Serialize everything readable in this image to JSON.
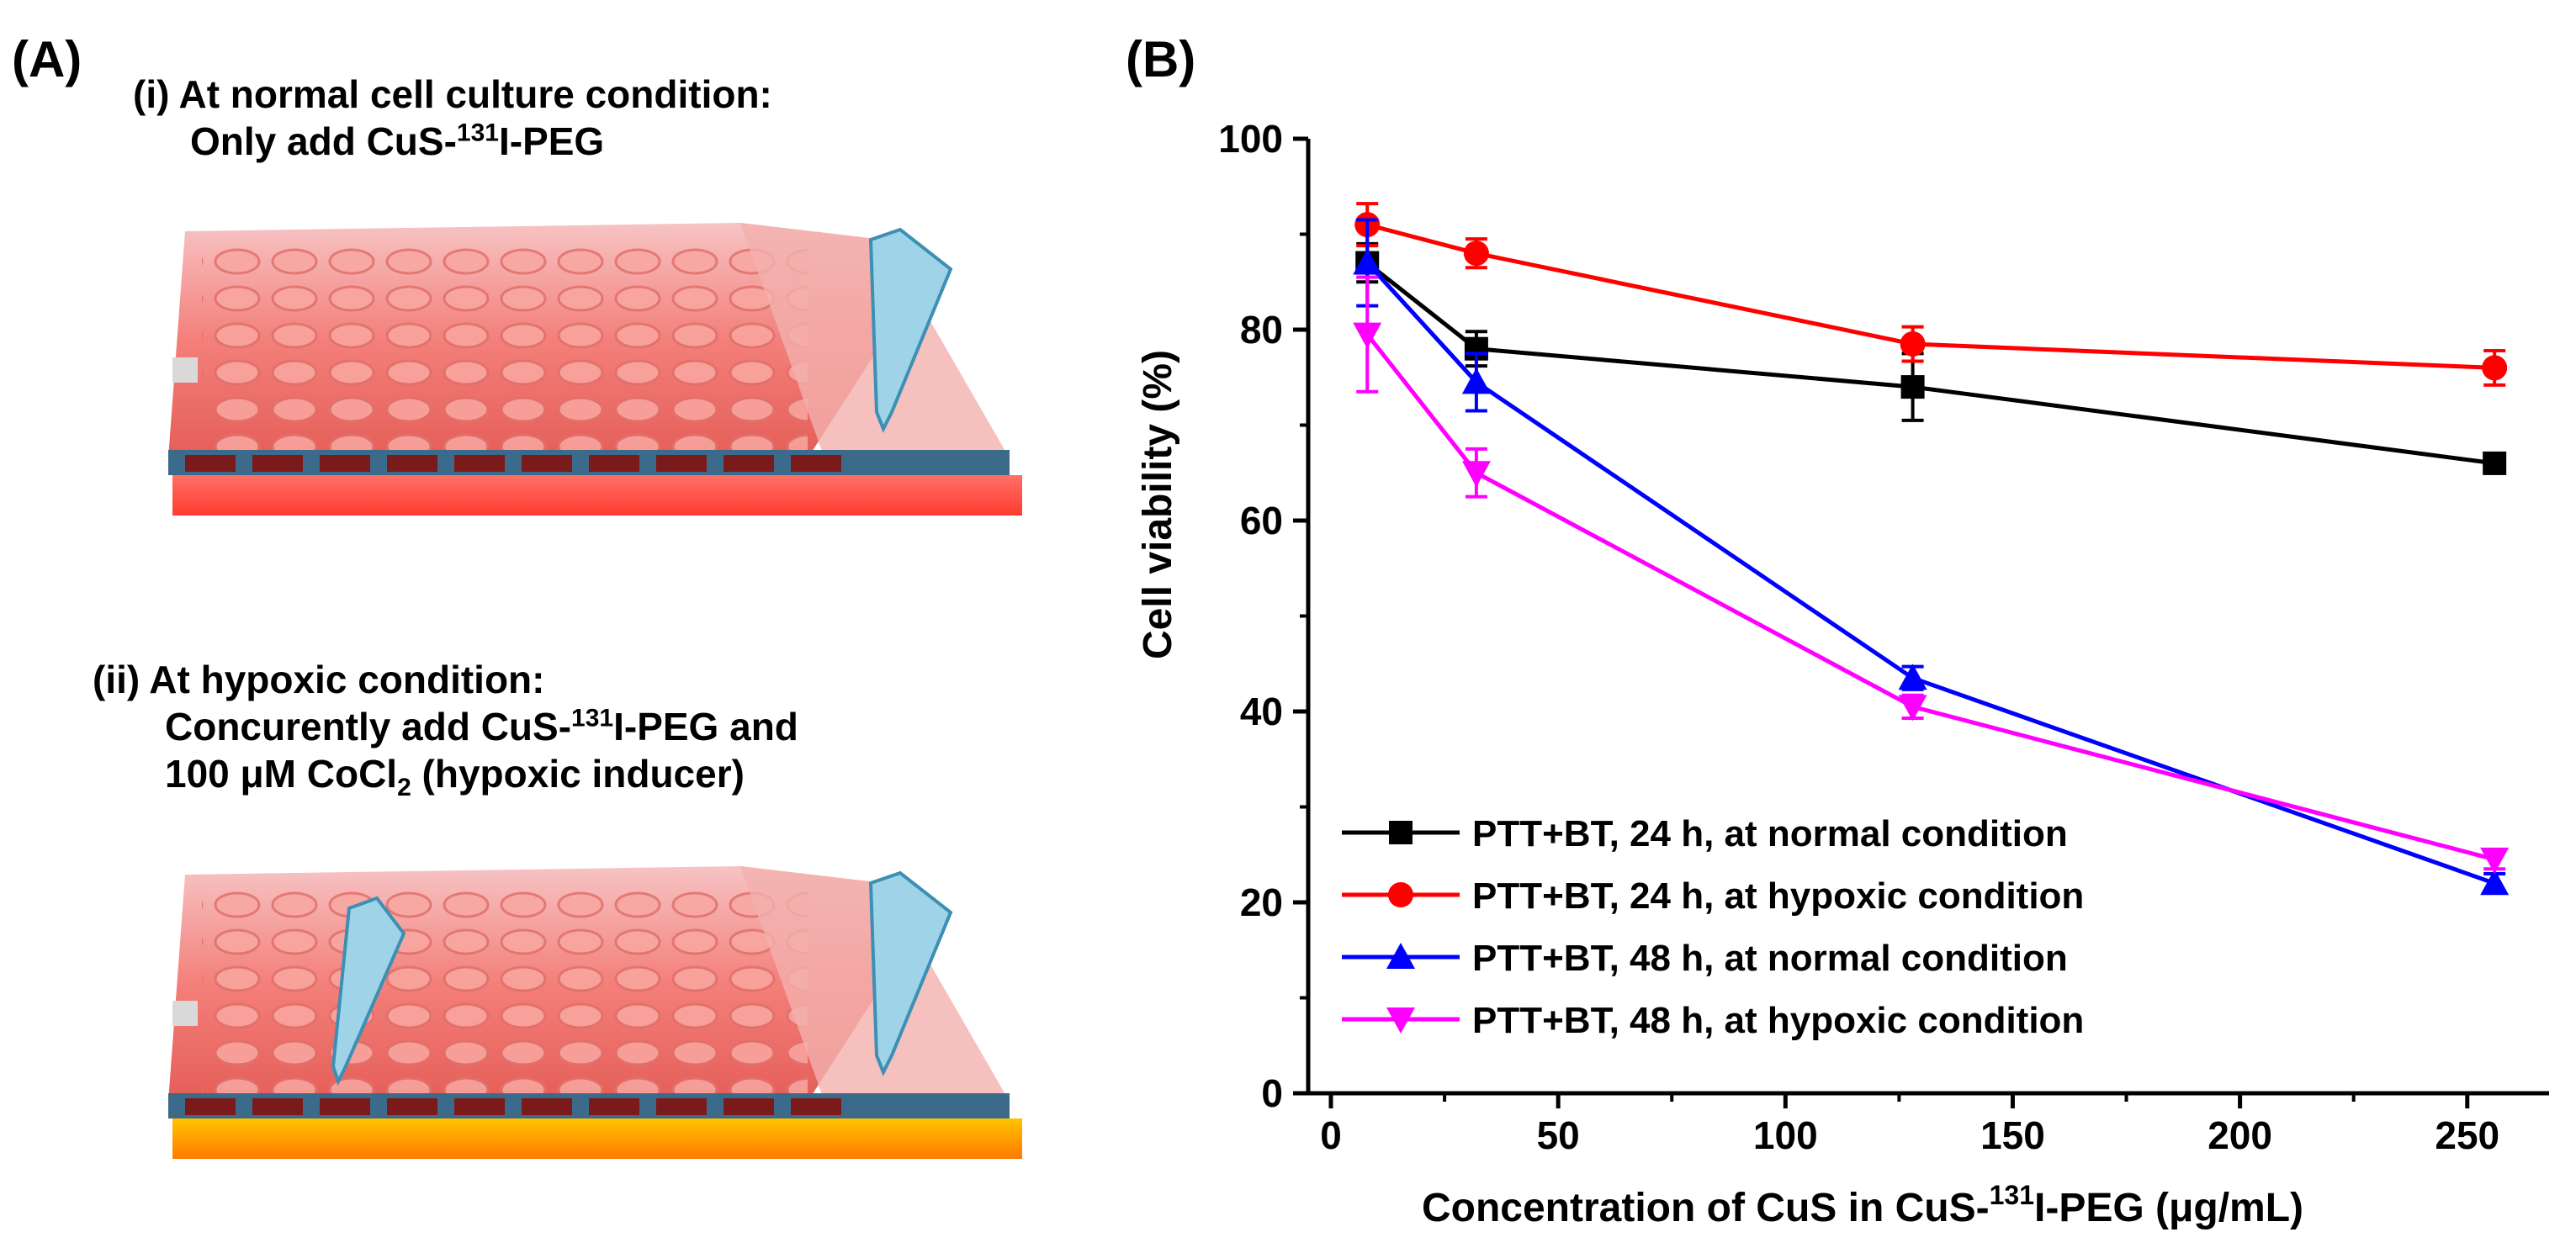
{
  "panel_a": {
    "label": "(A)",
    "case1": {
      "line1": "(i) At normal cell culture condition:",
      "line2_pre": "Only add CuS-",
      "line2_sup": "131",
      "line2_post": "I-PEG"
    },
    "case2": {
      "line1": "(ii) At hypoxic condition:",
      "line2_pre": "Concurently add CuS-",
      "line2_sup": "131",
      "line2_post": "I-PEG and",
      "line3_pre": "100 μM CoCl",
      "line3_sub": "2",
      "line3_post": " (hypoxic inducer)"
    }
  },
  "panel_b": {
    "label": "(B)"
  },
  "chart_data": {
    "type": "line",
    "ylabel": "Cell viability (%)",
    "xlabel_pre": "Concentration of CuS in CuS-",
    "xlabel_sup": "131",
    "xlabel_post": "I-PEG (μg/mL)",
    "xlim": [
      -5,
      268
    ],
    "ylim": [
      0,
      100
    ],
    "xticks": [
      0,
      50,
      100,
      150,
      200,
      250
    ],
    "yticks": [
      0,
      20,
      40,
      60,
      80,
      100
    ],
    "legend_position": "bottom-left",
    "series": [
      {
        "name": "PTT+BT, 24 h, at normal condition",
        "color": "#000000",
        "marker": "square",
        "x": [
          8,
          32,
          128,
          256
        ],
        "y": [
          87,
          78,
          74,
          66
        ],
        "err": [
          2,
          1.8,
          3.5,
          0.8
        ]
      },
      {
        "name": "PTT+BT, 24 h, at hypoxic condition",
        "color": "#ff0000",
        "marker": "circle",
        "x": [
          8,
          32,
          128,
          256
        ],
        "y": [
          91,
          88,
          78.5,
          76
        ],
        "err": [
          2.2,
          1.5,
          1.8,
          1.8
        ]
      },
      {
        "name": "PTT+BT, 48 h, at normal condition",
        "color": "#0000ff",
        "marker": "triangle-up",
        "x": [
          8,
          32,
          128,
          256
        ],
        "y": [
          87,
          74.5,
          43.5,
          22
        ],
        "err": [
          4.5,
          3,
          1.2,
          1
        ]
      },
      {
        "name": "PTT+BT, 48 h, at hypoxic condition",
        "color": "#ff00ff",
        "marker": "triangle-down",
        "x": [
          8,
          32,
          128,
          256
        ],
        "y": [
          79.5,
          65,
          40.5,
          24.5
        ],
        "err": [
          6,
          2.5,
          1.2,
          1
        ]
      }
    ]
  }
}
